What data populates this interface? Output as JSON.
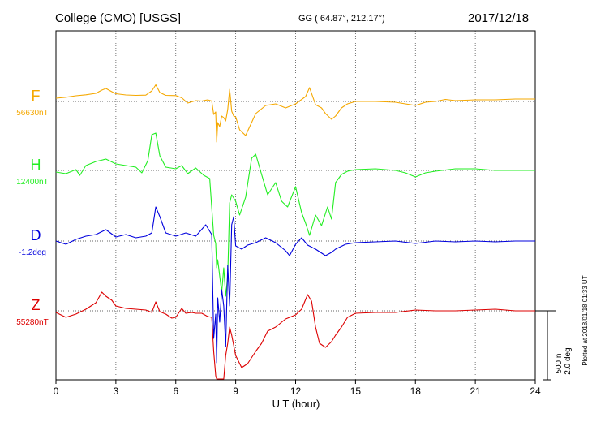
{
  "header": {
    "station": "College (CMO)  [USGS]",
    "coords": "GG ( 64.87°, 212.17°)",
    "date": "2017/12/18"
  },
  "plotted_note": "Plotted at 2018/01/18 01:33 UT",
  "scale_label": "500 nT",
  "scale_label_deg": "2.0 deg",
  "chart_data": {
    "type": "line",
    "xlabel": "U T (hour)",
    "xlim": [
      0,
      24
    ],
    "xticks": [
      0,
      3,
      6,
      9,
      12,
      15,
      18,
      21,
      24
    ],
    "grid": true,
    "scale_bar": {
      "nT": 500,
      "deg": 2.0
    },
    "series": [
      {
        "name": "F",
        "baseline_label": "56630nT",
        "color": "#f5a800",
        "x": [
          0,
          0.5,
          1,
          1.5,
          2,
          2.3,
          2.5,
          2.8,
          3,
          3.5,
          4,
          4.5,
          4.8,
          5,
          5.2,
          5.5,
          6,
          6.3,
          6.6,
          7,
          7.3,
          7.6,
          7.8,
          7.9,
          8,
          8.05,
          8.1,
          8.2,
          8.3,
          8.4,
          8.5,
          8.6,
          8.7,
          8.8,
          8.9,
          9,
          9.2,
          9.5,
          10,
          10.5,
          11,
          11.5,
          12,
          12.5,
          12.7,
          13,
          13.3,
          13.5,
          13.8,
          14,
          14.3,
          14.6,
          15,
          16,
          17,
          17.5,
          18,
          18.5,
          19,
          19.5,
          20,
          21,
          22,
          23,
          24
        ],
        "values": [
          40,
          52,
          70,
          82,
          100,
          140,
          160,
          120,
          95,
          80,
          75,
          78,
          130,
          205,
          110,
          75,
          72,
          45,
          -20,
          10,
          5,
          20,
          5,
          -160,
          -130,
          -500,
          -260,
          -310,
          -180,
          -200,
          -240,
          -100,
          150,
          -120,
          -180,
          -190,
          -350,
          -420,
          -150,
          -50,
          -30,
          -80,
          -30,
          60,
          170,
          -40,
          -80,
          -150,
          -220,
          -180,
          -80,
          -30,
          0,
          0,
          -10,
          -30,
          -50,
          -10,
          0,
          25,
          10,
          20,
          20,
          30,
          30
        ]
      },
      {
        "name": "H",
        "baseline_label": "12400nT",
        "color": "#22ee22",
        "x": [
          0,
          0.5,
          1,
          1.2,
          1.5,
          2,
          2.5,
          3,
          3.5,
          4,
          4.3,
          4.6,
          4.8,
          5,
          5.2,
          5.5,
          6,
          6.3,
          6.6,
          7,
          7.4,
          7.7,
          7.9,
          8,
          8.05,
          8.1,
          8.2,
          8.3,
          8.4,
          8.5,
          8.6,
          8.7,
          8.8,
          9,
          9.2,
          9.5,
          9.8,
          10,
          10.3,
          10.6,
          11,
          11.3,
          11.6,
          12,
          12.3,
          12.5,
          12.7,
          13,
          13.3,
          13.6,
          13.8,
          14,
          14.3,
          14.6,
          15,
          16,
          17,
          17.5,
          18,
          18.5,
          19,
          20,
          21,
          22,
          23,
          24
        ],
        "values": [
          -20,
          -40,
          10,
          -60,
          60,
          110,
          140,
          80,
          60,
          40,
          -30,
          120,
          440,
          460,
          180,
          40,
          20,
          60,
          -40,
          30,
          -60,
          -100,
          -800,
          -900,
          -1200,
          -1100,
          -1300,
          -1500,
          -1200,
          -1550,
          -1300,
          -400,
          -300,
          -380,
          -550,
          -330,
          150,
          200,
          -50,
          -300,
          -150,
          -380,
          -450,
          -200,
          -520,
          -650,
          -800,
          -550,
          -680,
          -450,
          -600,
          -150,
          -50,
          -10,
          10,
          20,
          0,
          -30,
          -80,
          -30,
          -10,
          20,
          20,
          0,
          0,
          0
        ]
      },
      {
        "name": "D",
        "baseline_label": "-1.2deg",
        "color": "#0000dd",
        "x": [
          0,
          0.5,
          1,
          1.5,
          2,
          2.5,
          3,
          3.5,
          4,
          4.5,
          4.8,
          5,
          5.2,
          5.5,
          6,
          6.5,
          7,
          7.5,
          7.8,
          7.9,
          8,
          8.05,
          8.1,
          8.2,
          8.3,
          8.4,
          8.5,
          8.6,
          8.7,
          8.8,
          8.9,
          9,
          9.3,
          9.6,
          10,
          10.5,
          11,
          11.5,
          11.7,
          12,
          12.3,
          12.6,
          13,
          13.5,
          13.8,
          14,
          14.5,
          15,
          16,
          17,
          18,
          19,
          20,
          21,
          22,
          23,
          24
        ],
        "values": [
          0,
          -40,
          20,
          60,
          80,
          140,
          50,
          80,
          40,
          60,
          100,
          420,
          300,
          100,
          60,
          100,
          60,
          200,
          80,
          -1200,
          -900,
          -1500,
          -700,
          -1000,
          -600,
          -800,
          -1300,
          -300,
          -800,
          200,
          300,
          -60,
          -100,
          -50,
          -20,
          40,
          -20,
          -120,
          -180,
          -40,
          40,
          -50,
          -100,
          -180,
          -140,
          -100,
          -40,
          -20,
          -10,
          0,
          -30,
          0,
          -10,
          0,
          -10,
          0,
          0
        ]
      },
      {
        "name": "Z",
        "baseline_label": "55280nT",
        "color": "#dd0000",
        "x": [
          0,
          0.5,
          1,
          1.5,
          2,
          2.3,
          2.5,
          2.8,
          3,
          3.5,
          4,
          4.5,
          4.8,
          5,
          5.2,
          5.5,
          5.8,
          6,
          6.3,
          6.5,
          6.8,
          7,
          7.3,
          7.6,
          7.8,
          7.9,
          8,
          8.05,
          8.1,
          8.2,
          8.3,
          8.4,
          8.5,
          8.6,
          8.7,
          8.8,
          9,
          9.3,
          9.6,
          10,
          10.3,
          10.6,
          11,
          11.5,
          12,
          12.3,
          12.6,
          12.8,
          13,
          13.2,
          13.5,
          13.8,
          14,
          14.3,
          14.6,
          15,
          16,
          17,
          18,
          19,
          20,
          21,
          22,
          23,
          24
        ],
        "values": [
          -20,
          -80,
          -40,
          20,
          100,
          230,
          180,
          130,
          60,
          30,
          20,
          10,
          -20,
          110,
          -10,
          -40,
          -90,
          -80,
          30,
          -30,
          -20,
          -30,
          -30,
          -70,
          -80,
          -500,
          -800,
          -1200,
          -1000,
          -1000,
          -1100,
          -900,
          -550,
          -400,
          -200,
          -300,
          -550,
          -700,
          -650,
          -500,
          -400,
          -250,
          -200,
          -100,
          -50,
          20,
          200,
          120,
          -200,
          -400,
          -450,
          -380,
          -300,
          -200,
          -80,
          -30,
          -20,
          -20,
          10,
          0,
          0,
          10,
          20,
          0,
          0
        ]
      }
    ]
  }
}
